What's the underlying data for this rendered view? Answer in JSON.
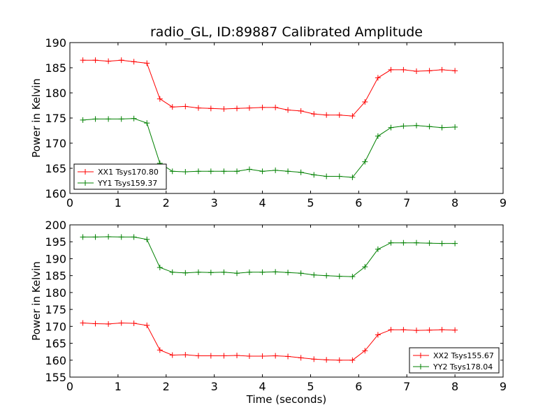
{
  "chart_data": [
    {
      "type": "line",
      "title": "radio_GL, ID:89887 Calibrated Amplitude",
      "xlabel": "",
      "ylabel": "Power in Kelvin",
      "xlim": [
        0,
        9
      ],
      "ylim": [
        160,
        190
      ],
      "xticks": [
        "0",
        "1",
        "2",
        "3",
        "4",
        "5",
        "6",
        "7",
        "8",
        "9"
      ],
      "yticks": [
        "160",
        "165",
        "170",
        "175",
        "180",
        "185",
        "190"
      ],
      "legend_position": "lower-left",
      "series": [
        {
          "name": "XX1 Tsys170.80",
          "color": "#ff0000",
          "x": [
            0.27,
            0.53,
            0.8,
            1.07,
            1.33,
            1.6,
            1.87,
            2.13,
            2.4,
            2.67,
            2.93,
            3.2,
            3.47,
            3.73,
            4.0,
            4.27,
            4.53,
            4.8,
            5.07,
            5.33,
            5.6,
            5.87,
            6.13,
            6.4,
            6.67,
            6.93,
            7.2,
            7.47,
            7.73,
            8.0
          ],
          "y": [
            186.5,
            186.5,
            186.3,
            186.5,
            186.2,
            185.9,
            178.8,
            177.2,
            177.3,
            177.0,
            176.9,
            176.8,
            176.9,
            177.0,
            177.1,
            177.1,
            176.6,
            176.4,
            175.8,
            175.6,
            175.6,
            175.4,
            178.2,
            183.0,
            184.6,
            184.6,
            184.3,
            184.4,
            184.6,
            184.4
          ]
        },
        {
          "name": "YY1 Tsys159.37",
          "color": "#008000",
          "x": [
            0.27,
            0.53,
            0.8,
            1.07,
            1.33,
            1.6,
            1.87,
            2.13,
            2.4,
            2.67,
            2.93,
            3.2,
            3.47,
            3.73,
            4.0,
            4.27,
            4.53,
            4.8,
            5.07,
            5.33,
            5.6,
            5.87,
            6.13,
            6.4,
            6.67,
            6.93,
            7.2,
            7.47,
            7.73,
            8.0
          ],
          "y": [
            174.6,
            174.8,
            174.8,
            174.8,
            174.9,
            174.0,
            166.0,
            164.4,
            164.3,
            164.4,
            164.4,
            164.4,
            164.4,
            164.8,
            164.4,
            164.6,
            164.4,
            164.2,
            163.7,
            163.4,
            163.4,
            163.2,
            166.3,
            171.4,
            173.1,
            173.4,
            173.5,
            173.3,
            173.1,
            173.2
          ]
        }
      ]
    },
    {
      "type": "line",
      "title": "",
      "xlabel": "Time (seconds)",
      "ylabel": "Power in Kelvin",
      "xlim": [
        0,
        9
      ],
      "ylim": [
        155,
        200
      ],
      "xticks": [
        "0",
        "1",
        "2",
        "3",
        "4",
        "5",
        "6",
        "7",
        "8",
        "9"
      ],
      "yticks": [
        "155",
        "160",
        "165",
        "170",
        "175",
        "180",
        "185",
        "190",
        "195",
        "200"
      ],
      "legend_position": "lower-right",
      "series": [
        {
          "name": "XX2 Tsys155.67",
          "color": "#ff0000",
          "x": [
            0.27,
            0.53,
            0.8,
            1.07,
            1.33,
            1.6,
            1.87,
            2.13,
            2.4,
            2.67,
            2.93,
            3.2,
            3.47,
            3.73,
            4.0,
            4.27,
            4.53,
            4.8,
            5.07,
            5.33,
            5.6,
            5.87,
            6.13,
            6.4,
            6.67,
            6.93,
            7.2,
            7.47,
            7.73,
            8.0
          ],
          "y": [
            171.0,
            170.8,
            170.7,
            171.0,
            170.9,
            170.3,
            163.0,
            161.5,
            161.6,
            161.3,
            161.3,
            161.3,
            161.4,
            161.2,
            161.2,
            161.3,
            161.1,
            160.7,
            160.3,
            160.1,
            160.0,
            160.0,
            162.8,
            167.5,
            169.0,
            169.0,
            168.8,
            168.9,
            169.0,
            168.9
          ]
        },
        {
          "name": "YY2 Tsys178.04",
          "color": "#008000",
          "x": [
            0.27,
            0.53,
            0.8,
            1.07,
            1.33,
            1.6,
            1.87,
            2.13,
            2.4,
            2.67,
            2.93,
            3.2,
            3.47,
            3.73,
            4.0,
            4.27,
            4.53,
            4.8,
            5.07,
            5.33,
            5.6,
            5.87,
            6.13,
            6.4,
            6.67,
            6.93,
            7.2,
            7.47,
            7.73,
            8.0
          ],
          "y": [
            196.4,
            196.4,
            196.5,
            196.4,
            196.4,
            195.7,
            187.4,
            186.0,
            185.8,
            186.0,
            185.9,
            186.0,
            185.7,
            186.0,
            186.0,
            186.1,
            185.9,
            185.7,
            185.2,
            185.0,
            184.8,
            184.7,
            187.6,
            192.8,
            194.7,
            194.7,
            194.7,
            194.6,
            194.5,
            194.5
          ]
        }
      ]
    }
  ]
}
